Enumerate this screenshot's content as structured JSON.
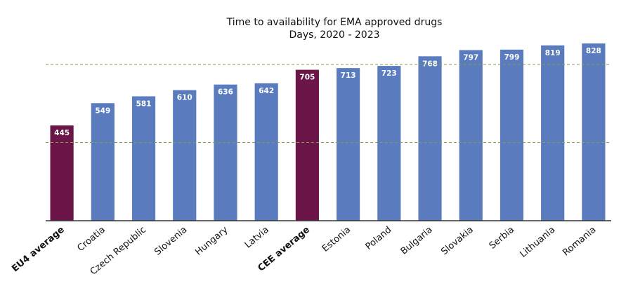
{
  "chart_data": {
    "type": "bar",
    "title": "Time to availability for EMA approved drugs",
    "subtitle": "Days, 2020 - 2023",
    "categories": [
      "EU4 average",
      "Croatia",
      "Czech Republic",
      "Slovenia",
      "Hungary",
      "Latvia",
      "CEE average",
      "Estonia",
      "Poland",
      "Bulgaria",
      "Slovakia",
      "Serbia",
      "Lithuania",
      "Romania"
    ],
    "values": [
      445,
      549,
      581,
      610,
      636,
      642,
      705,
      713,
      723,
      768,
      797,
      799,
      819,
      828
    ],
    "colors": [
      "#6b1548",
      "#5a7bbd",
      "#5a7bbd",
      "#5a7bbd",
      "#5a7bbd",
      "#5a7bbd",
      "#6b1548",
      "#5a7bbd",
      "#5a7bbd",
      "#5a7bbd",
      "#5a7bbd",
      "#5a7bbd",
      "#5a7bbd",
      "#5a7bbd"
    ],
    "bold_labels": [
      true,
      false,
      false,
      false,
      false,
      false,
      true,
      false,
      false,
      false,
      false,
      false,
      false,
      false
    ],
    "ylim": [
      0,
      900
    ],
    "reference_lines": [
      365,
      730
    ],
    "reference_color": "#8a9a4a"
  }
}
